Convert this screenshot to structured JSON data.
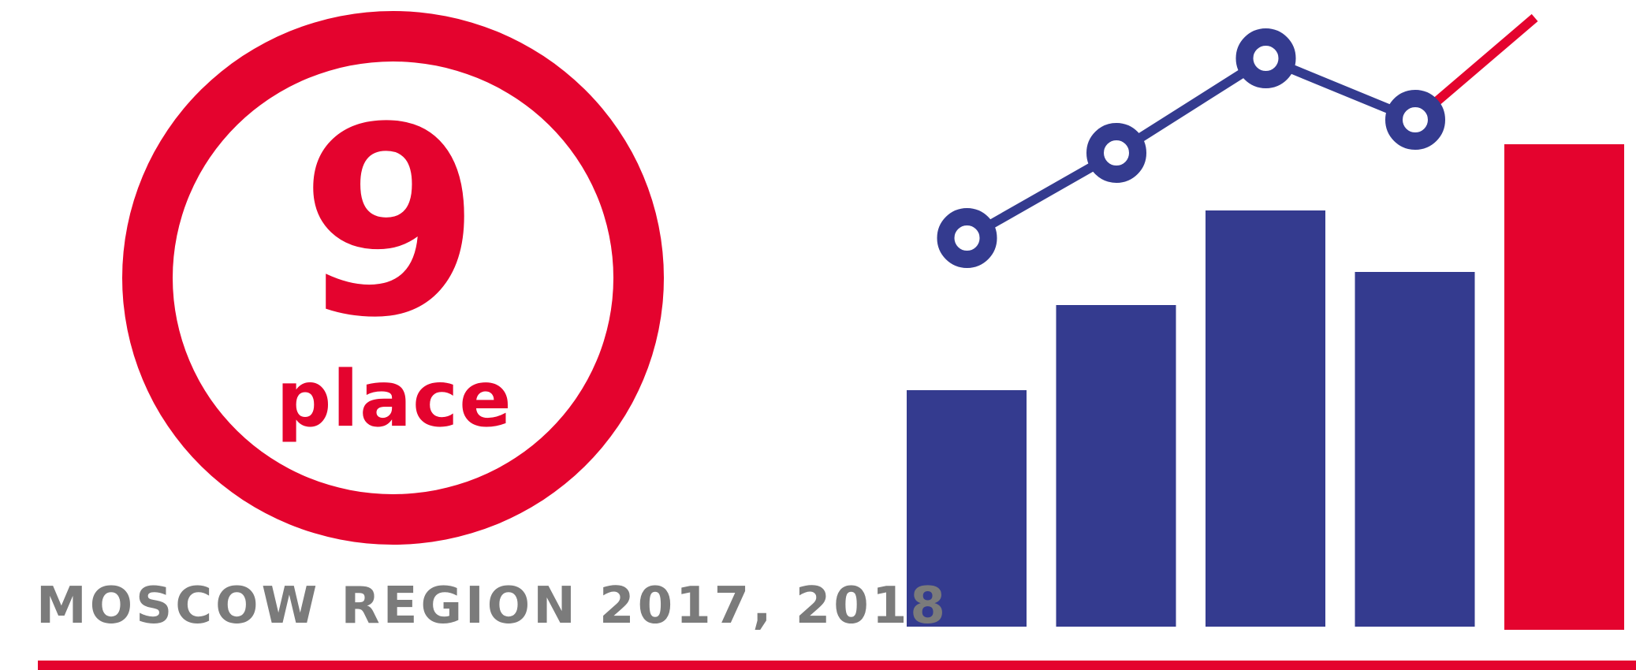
{
  "rank": {
    "number": "9",
    "label": "place"
  },
  "caption": "MOSCOW REGION 2017, 2018",
  "colors": {
    "accent": "#e4032e",
    "series": "#343b8f",
    "caption": "#7b7b7b"
  },
  "chart_data": {
    "type": "bar",
    "categories": [
      "",
      "",
      "",
      "",
      ""
    ],
    "values": [
      100,
      136,
      176,
      150,
      204
    ],
    "highlight_index": 4,
    "trend_line": true
  }
}
